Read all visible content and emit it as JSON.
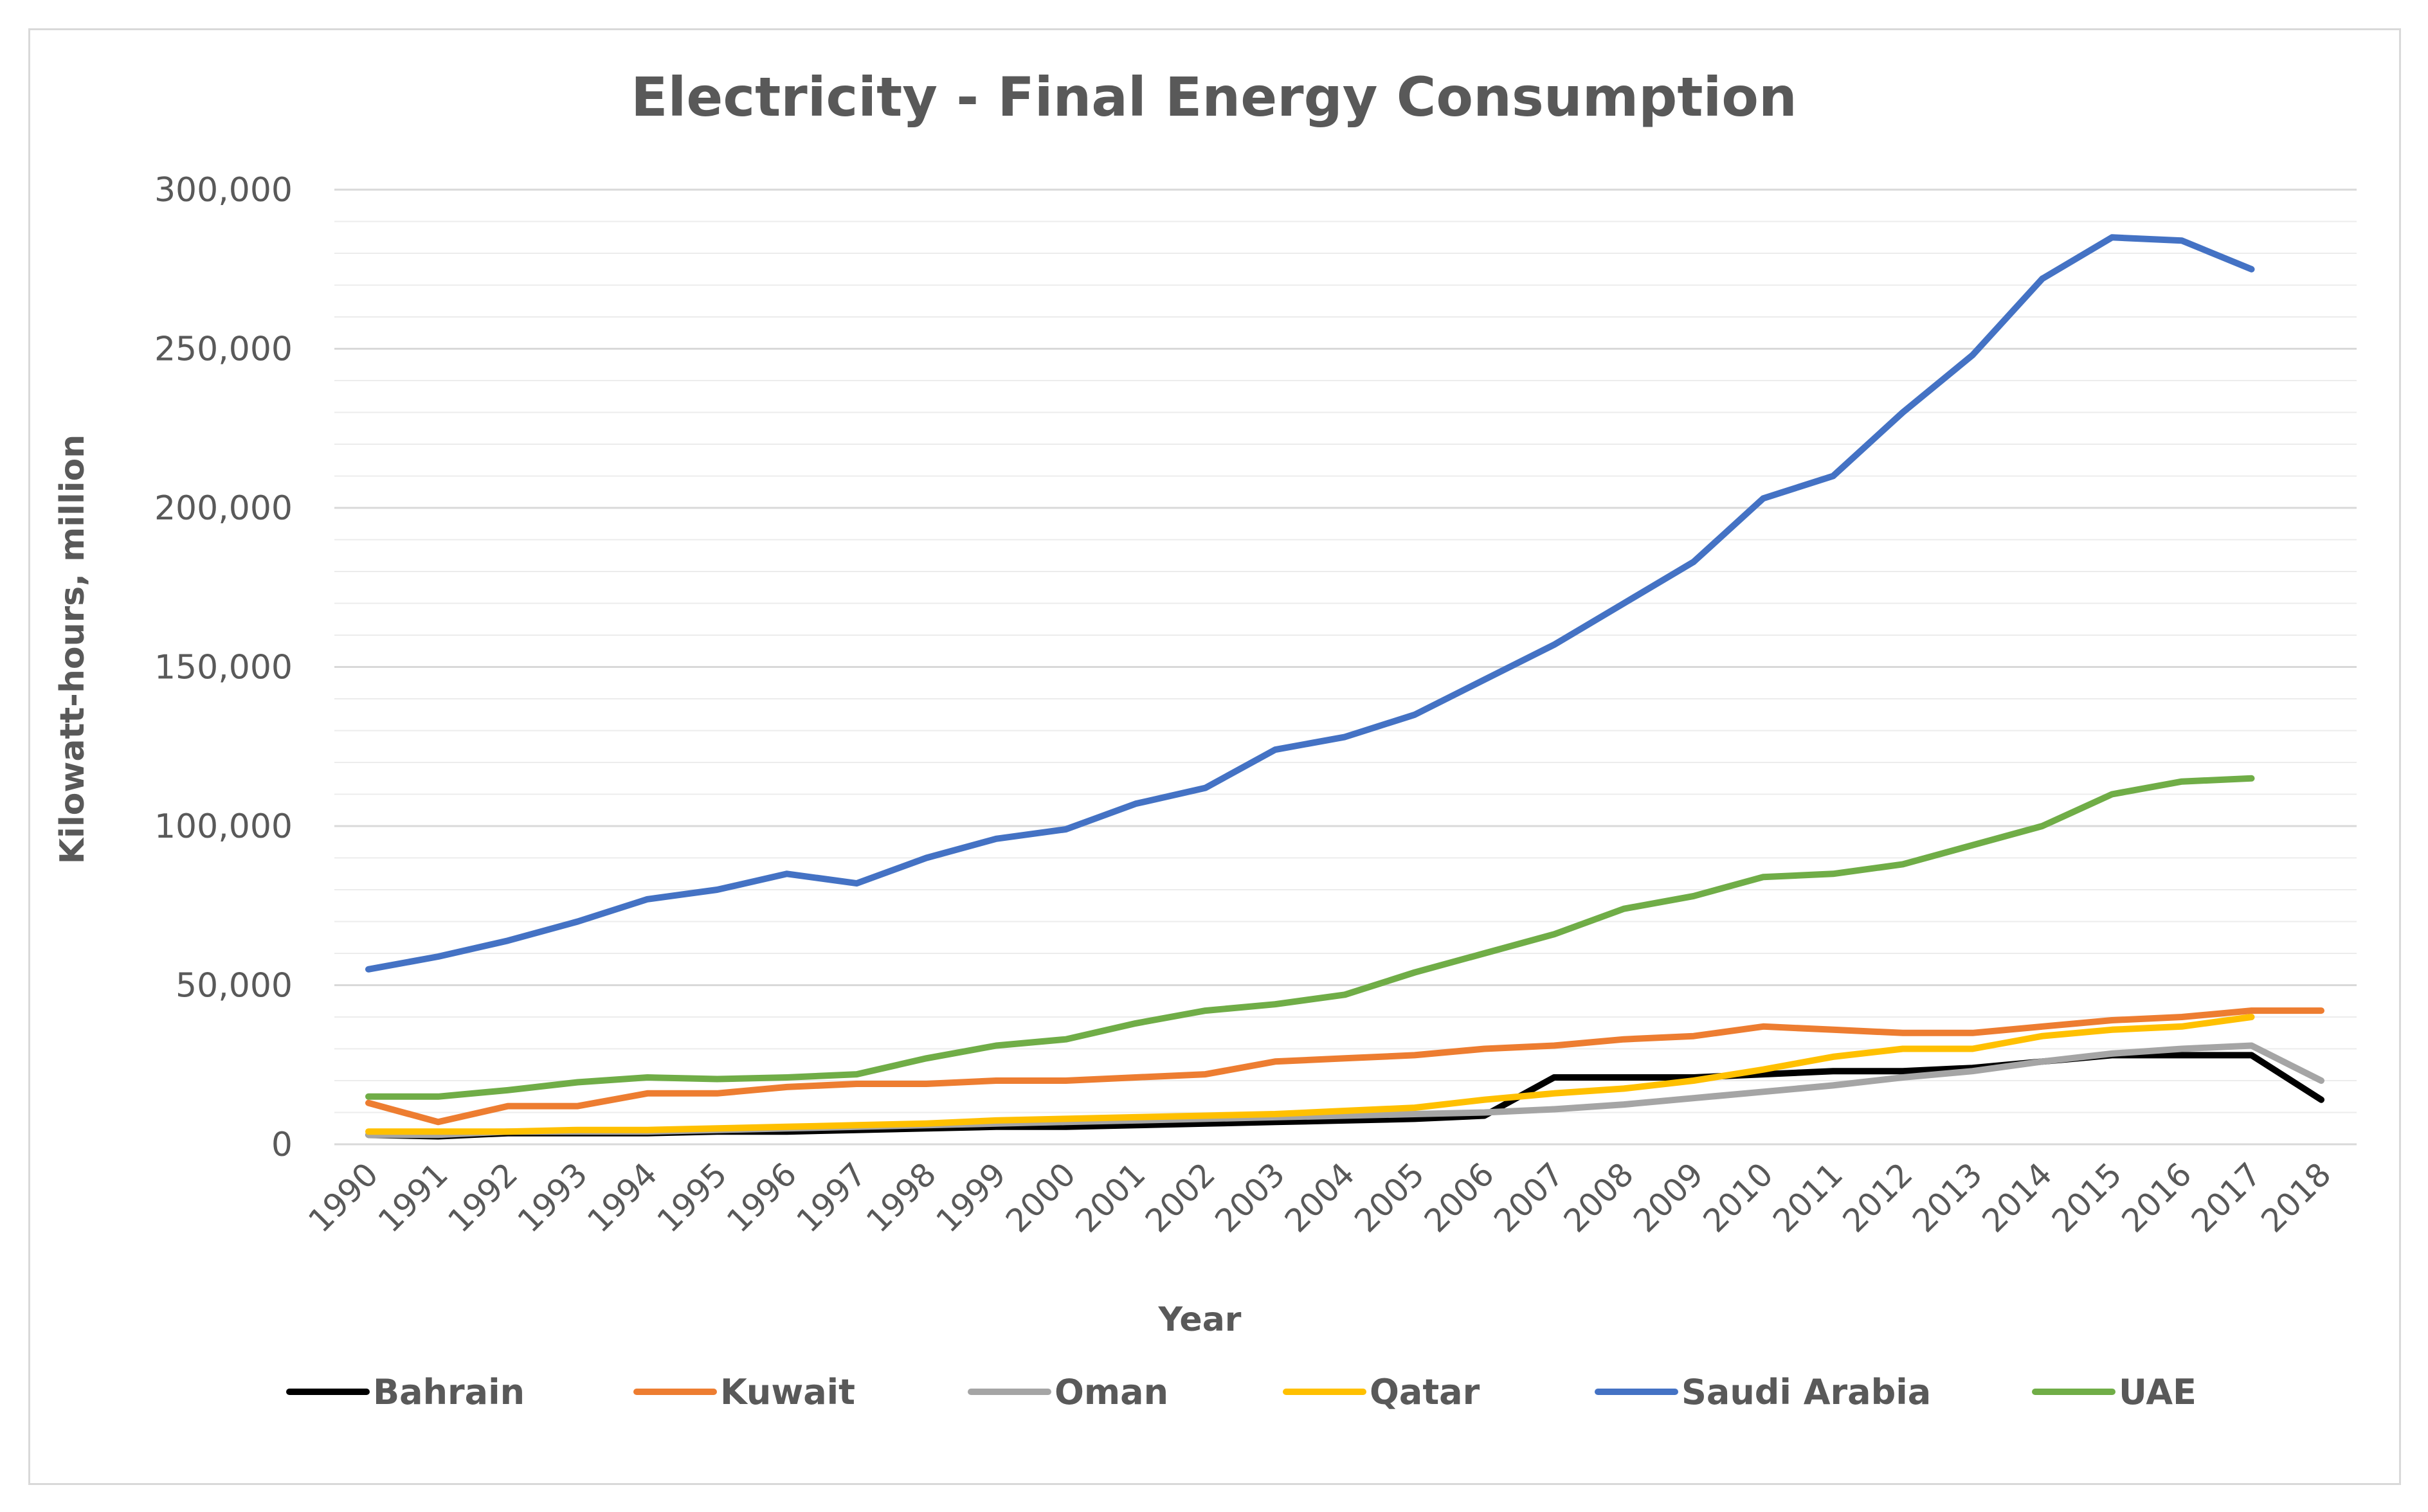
{
  "chart_data": {
    "type": "line",
    "title": "Electricity - Final Energy Consumption",
    "xlabel": "Year",
    "ylabel": "Kilowatt-hours, million",
    "ylim": [
      0,
      300000
    ],
    "yticks": [
      0,
      50000,
      100000,
      150000,
      200000,
      250000,
      300000
    ],
    "ytick_labels": [
      "0",
      "50,000",
      "100,000",
      "150,000",
      "200,000",
      "250,000",
      "300,000"
    ],
    "minor_grid_step": 10000,
    "legend_position": "bottom",
    "categories": [
      "1990",
      "1991",
      "1992",
      "1993",
      "1994",
      "1995",
      "1996",
      "1997",
      "1998",
      "1999",
      "2000",
      "2001",
      "2002",
      "2003",
      "2004",
      "2005",
      "2006",
      "2007",
      "2008",
      "2009",
      "2010",
      "2011",
      "2012",
      "2013",
      "2014",
      "2015",
      "2016",
      "2017",
      "2018"
    ],
    "series": [
      {
        "name": "Bahrain",
        "color": "#000000",
        "values": [
          3000,
          2500,
          3500,
          3500,
          3500,
          4000,
          4000,
          4500,
          5000,
          5500,
          5500,
          6000,
          6500,
          7000,
          7500,
          8000,
          9000,
          21000,
          21000,
          21000,
          22000,
          23000,
          23000,
          24000,
          26000,
          28000,
          28000,
          28000,
          14000
        ]
      },
      {
        "name": "Kuwait",
        "color": "#ed7d31",
        "values": [
          13000,
          7000,
          12000,
          12000,
          16000,
          16000,
          18000,
          19000,
          19000,
          20000,
          20000,
          21000,
          22000,
          26000,
          27000,
          28000,
          30000,
          31000,
          33000,
          34000,
          37000,
          36000,
          35000,
          35000,
          37000,
          39000,
          40000,
          42000,
          42000
        ]
      },
      {
        "name": "Oman",
        "color": "#a5a5a5",
        "values": [
          3000,
          3000,
          4000,
          4000,
          4000,
          4500,
          5000,
          5500,
          6000,
          6500,
          7000,
          7500,
          8000,
          8500,
          9000,
          9500,
          10000,
          11000,
          12500,
          14500,
          16500,
          18500,
          21000,
          23000,
          26000,
          28500,
          30000,
          31000,
          20000
        ]
      },
      {
        "name": "Qatar",
        "color": "#ffc000",
        "values": [
          4000,
          4000,
          4000,
          4500,
          4500,
          5000,
          5500,
          6000,
          6500,
          7500,
          8000,
          8500,
          9000,
          9500,
          10500,
          11500,
          14000,
          16000,
          17500,
          20000,
          23500,
          27500,
          30000,
          30000,
          34000,
          36000,
          37000,
          40000,
          null
        ]
      },
      {
        "name": "Saudi Arabia",
        "color": "#4472c4",
        "values": [
          55000,
          59000,
          64000,
          70000,
          77000,
          80000,
          85000,
          82000,
          90000,
          96000,
          99000,
          107000,
          112000,
          124000,
          128000,
          135000,
          146000,
          157000,
          170000,
          183000,
          203000,
          210000,
          230000,
          248000,
          272000,
          285000,
          284000,
          275000,
          null
        ]
      },
      {
        "name": "UAE",
        "color": "#70ad47",
        "values": [
          15000,
          15000,
          17000,
          19500,
          21000,
          20500,
          21000,
          22000,
          27000,
          31000,
          33000,
          38000,
          42000,
          44000,
          47000,
          54000,
          60000,
          66000,
          74000,
          78000,
          84000,
          85000,
          88000,
          94000,
          100000,
          110000,
          114000,
          115000,
          null
        ]
      }
    ]
  }
}
